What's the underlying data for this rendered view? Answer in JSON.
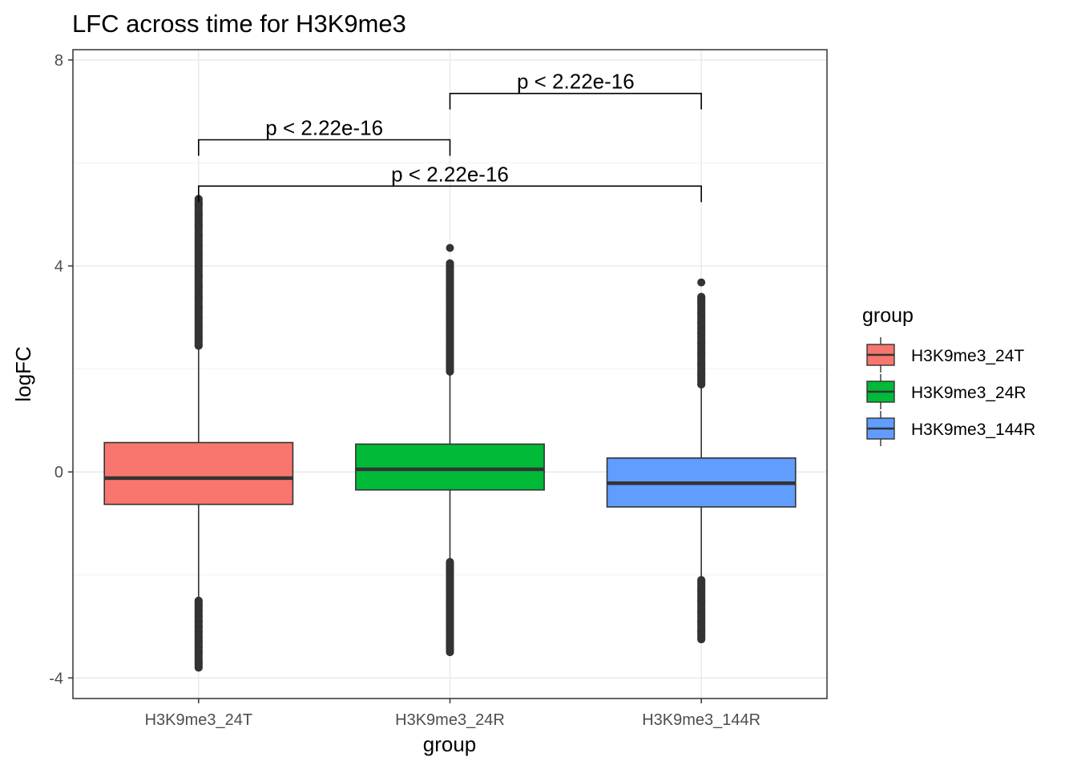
{
  "chart_data": {
    "type": "boxplot",
    "title": "LFC across time for H3K9me3",
    "xlabel": "group",
    "ylabel": "logFC",
    "ylim": [
      -4.4,
      8.2
    ],
    "yticks": [
      -4,
      0,
      4,
      8
    ],
    "grid": true,
    "legend": {
      "title": "group",
      "placement": "right",
      "entries": [
        "H3K9me3_24T",
        "H3K9me3_24R",
        "H3K9me3_144R"
      ]
    },
    "categories": [
      "H3K9me3_24T",
      "H3K9me3_24R",
      "H3K9me3_144R"
    ],
    "colors": [
      "#F8766D",
      "#00BA38",
      "#619CFF"
    ],
    "series": [
      {
        "name": "H3K9me3_24T",
        "q1": -0.63,
        "median": -0.12,
        "q3": 0.57,
        "whisker_low": -2.43,
        "whisker_high": 2.4,
        "outliers_high": [
          2.45,
          2.6,
          2.8,
          3.0,
          3.2,
          3.4,
          3.6,
          3.8,
          4.0,
          4.2,
          4.4,
          4.6,
          4.8,
          5.0,
          5.2,
          5.3
        ],
        "outliers_low": [
          -2.5,
          -2.6,
          -2.7,
          -2.8,
          -2.9,
          -3.0,
          -3.1,
          -3.2,
          -3.3,
          -3.4,
          -3.5,
          -3.7,
          -3.8
        ]
      },
      {
        "name": "H3K9me3_24R",
        "q1": -0.35,
        "median": 0.05,
        "q3": 0.54,
        "whisker_low": -1.73,
        "whisker_high": 1.9,
        "outliers_high": [
          1.95,
          2.1,
          2.3,
          2.5,
          2.7,
          2.9,
          3.1,
          3.3,
          3.5,
          3.7,
          3.9,
          4.05,
          4.35
        ],
        "outliers_low": [
          -1.75,
          -1.9,
          -2.1,
          -2.3,
          -2.5,
          -2.7,
          -2.9,
          -3.1,
          -3.3,
          -3.45,
          -3.5
        ]
      },
      {
        "name": "H3K9me3_144R",
        "q1": -0.68,
        "median": -0.22,
        "q3": 0.27,
        "whisker_low": -2.03,
        "whisker_high": 1.65,
        "outliers_high": [
          1.7,
          1.9,
          2.1,
          2.3,
          2.5,
          2.7,
          2.9,
          3.1,
          3.3,
          3.4,
          3.68
        ],
        "outliers_low": [
          -2.1,
          -2.3,
          -2.5,
          -2.7,
          -2.9,
          -3.1,
          -3.25
        ]
      }
    ],
    "annotations": [
      {
        "label": "p < 2.22e-16",
        "from": 1,
        "to": 2,
        "y": 7.35
      },
      {
        "label": "p < 2.22e-16",
        "from": 0,
        "to": 1,
        "y": 6.45
      },
      {
        "label": "p < 2.22e-16",
        "from": 0,
        "to": 2,
        "y": 5.55
      }
    ]
  }
}
